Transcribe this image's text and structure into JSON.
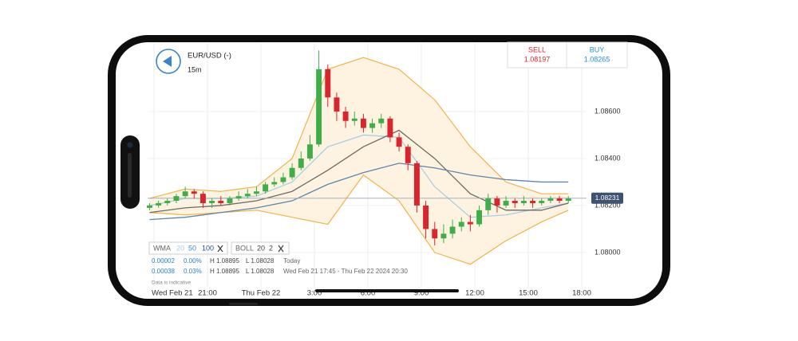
{
  "header": {
    "symbol": "EUR/USD (-)",
    "interval": "15m"
  },
  "quote": {
    "sell_label": "SELL",
    "sell": "1.08197",
    "buy_label": "BUY",
    "buy": "1.08265"
  },
  "legend": {
    "wma": "WMA",
    "wma_periods": [
      "20",
      "50",
      "100"
    ],
    "boll": "BOLL",
    "boll_params": [
      "20",
      "2"
    ]
  },
  "stats": [
    [
      "0.00002",
      "0.00%",
      "H 1.08895",
      "L 1.08028",
      "Today"
    ],
    [
      "0.00038",
      "0.03%",
      "H 1.08895",
      "L 1.08028",
      "Wed Feb 21 17:45 - Thu Feb 22 2024 20:30"
    ]
  ],
  "note": "Data is indicative",
  "chart_data": {
    "type": "candlestick",
    "x": [
      17.75,
      18.25,
      18.75,
      19.25,
      19.75,
      20.25,
      20.75,
      21.25,
      21.75,
      22.25,
      22.75,
      23.25,
      23.75,
      24.25,
      24.75,
      25.25,
      25.75,
      26.25,
      26.75,
      27.25,
      27.75,
      28.25,
      28.75,
      29.25,
      29.75,
      30.25,
      30.75,
      31.25,
      31.75,
      32.25,
      32.75,
      33.25,
      33.75,
      34.25,
      34.75,
      35.25,
      35.75,
      36.25,
      36.75,
      37.25,
      37.75,
      38.25,
      38.75,
      39.25,
      39.75,
      40.25,
      40.75,
      41.25
    ],
    "open": [
      1.0819,
      1.082,
      1.0821,
      1.0822,
      1.0824,
      1.0826,
      1.0825,
      1.0821,
      1.0822,
      1.0821,
      1.0823,
      1.0824,
      1.0825,
      1.0826,
      1.0829,
      1.083,
      1.0832,
      1.0836,
      1.084,
      1.0846,
      1.0878,
      1.0866,
      1.086,
      1.0856,
      1.0857,
      1.0853,
      1.0855,
      1.0857,
      1.0849,
      1.0845,
      1.0838,
      1.082,
      1.081,
      1.0806,
      1.0808,
      1.0811,
      1.0813,
      1.0812,
      1.0818,
      1.0823,
      1.082,
      1.0822,
      1.0821,
      1.0822,
      1.0821,
      1.0822,
      1.0823,
      1.0822
    ],
    "high": [
      1.0821,
      1.0822,
      1.0823,
      1.0825,
      1.0828,
      1.0827,
      1.0826,
      1.0823,
      1.0824,
      1.0824,
      1.0826,
      1.0827,
      1.0828,
      1.083,
      1.0832,
      1.0834,
      1.0838,
      1.0843,
      1.085,
      1.0886,
      1.088,
      1.0868,
      1.0862,
      1.086,
      1.0859,
      1.0857,
      1.0859,
      1.0858,
      1.0851,
      1.0846,
      1.0839,
      1.0822,
      1.0813,
      1.0812,
      1.0814,
      1.0815,
      1.0816,
      1.082,
      1.0825,
      1.0824,
      1.0824,
      1.0823,
      1.0824,
      1.0823,
      1.0823,
      1.0824,
      1.0824,
      1.0824
    ],
    "low": [
      1.0818,
      1.0819,
      1.082,
      1.0821,
      1.0823,
      1.0823,
      1.0819,
      1.0819,
      1.082,
      1.082,
      1.0822,
      1.0823,
      1.0824,
      1.0825,
      1.0828,
      1.0829,
      1.0831,
      1.0835,
      1.0839,
      1.0845,
      1.0862,
      1.0856,
      1.0853,
      1.0854,
      1.0851,
      1.0851,
      1.0853,
      1.0847,
      1.0843,
      1.0835,
      1.0817,
      1.0806,
      1.0803,
      1.0804,
      1.0806,
      1.0809,
      1.0809,
      1.0811,
      1.0816,
      1.0817,
      1.0819,
      1.0819,
      1.082,
      1.0819,
      1.082,
      1.0821,
      1.0821,
      1.0821
    ],
    "close": [
      1.082,
      1.0821,
      1.0822,
      1.0824,
      1.0826,
      1.0825,
      1.0821,
      1.0822,
      1.0821,
      1.0823,
      1.0824,
      1.0825,
      1.0826,
      1.0829,
      1.083,
      1.0832,
      1.0836,
      1.084,
      1.0846,
      1.0878,
      1.0866,
      1.086,
      1.0856,
      1.0857,
      1.0853,
      1.0855,
      1.0857,
      1.0849,
      1.0845,
      1.0838,
      1.082,
      1.081,
      1.0806,
      1.0808,
      1.0811,
      1.0813,
      1.0812,
      1.0818,
      1.0823,
      1.082,
      1.0822,
      1.0821,
      1.0822,
      1.0821,
      1.0822,
      1.0823,
      1.0822,
      1.0823
    ],
    "up_color": "#3fae49",
    "down_color": "#d9262c",
    "xlim": [
      17.64,
      42.27
    ],
    "ylim": [
      1.0782,
      1.0889
    ],
    "xticks": [
      {
        "value": 18,
        "label": "Wed Feb 21"
      },
      {
        "value": 21,
        "label": "21:00"
      },
      {
        "value": 24,
        "label": "Thu Feb 22"
      },
      {
        "value": 27,
        "label": "3:00"
      },
      {
        "value": 30,
        "label": "6:00"
      },
      {
        "value": 33,
        "label": "9:00"
      },
      {
        "value": 36,
        "label": "12:00"
      },
      {
        "value": 39,
        "label": "15:00"
      },
      {
        "value": 42,
        "label": "18:00"
      }
    ],
    "yticks": [
      {
        "value": 1.08,
        "label": "1.08000"
      },
      {
        "value": 1.082,
        "label": "1.08200"
      },
      {
        "value": 1.084,
        "label": "1.08400"
      },
      {
        "value": 1.086,
        "label": "1.08600"
      }
    ],
    "grid": true,
    "last_price": {
      "value": 1.08231,
      "label": "1.08231"
    },
    "indicators": {
      "x": [
        17.75,
        19.75,
        21.75,
        23.75,
        25.75,
        27.75,
        29.75,
        31.75,
        33.75,
        35.75,
        37.75,
        39.75,
        41.25
      ],
      "band": {
        "color": "#f0b44c",
        "fill": "#fdf3e0",
        "upper": [
          1.0823,
          1.0827,
          1.0826,
          1.0828,
          1.084,
          1.0878,
          1.0883,
          1.0878,
          1.0865,
          1.0845,
          1.083,
          1.0825,
          1.0825
        ],
        "lower": [
          1.0817,
          1.0816,
          1.0817,
          1.0818,
          1.0815,
          1.0812,
          1.0833,
          1.0822,
          1.08,
          1.0795,
          1.0805,
          1.0813,
          1.0818
        ]
      },
      "series": [
        {
          "color": "#a9cfe8",
          "values": [
            1.082,
            1.0823,
            1.0823,
            1.0824,
            1.083,
            1.0845,
            1.085,
            1.0849,
            1.0828,
            1.0815,
            1.0816,
            1.0819,
            1.0821
          ]
        },
        {
          "color": "#6e6a66",
          "values": [
            1.0817,
            1.0819,
            1.082,
            1.0822,
            1.0826,
            1.0835,
            1.0845,
            1.0852,
            1.084,
            1.0825,
            1.0818,
            1.0818,
            1.0821
          ]
        },
        {
          "color": "#5b86b0",
          "values": [
            1.0814,
            1.0815,
            1.0817,
            1.0819,
            1.0822,
            1.0829,
            1.0834,
            1.0838,
            1.0836,
            1.0833,
            1.0831,
            1.083,
            1.083
          ]
        }
      ]
    }
  }
}
